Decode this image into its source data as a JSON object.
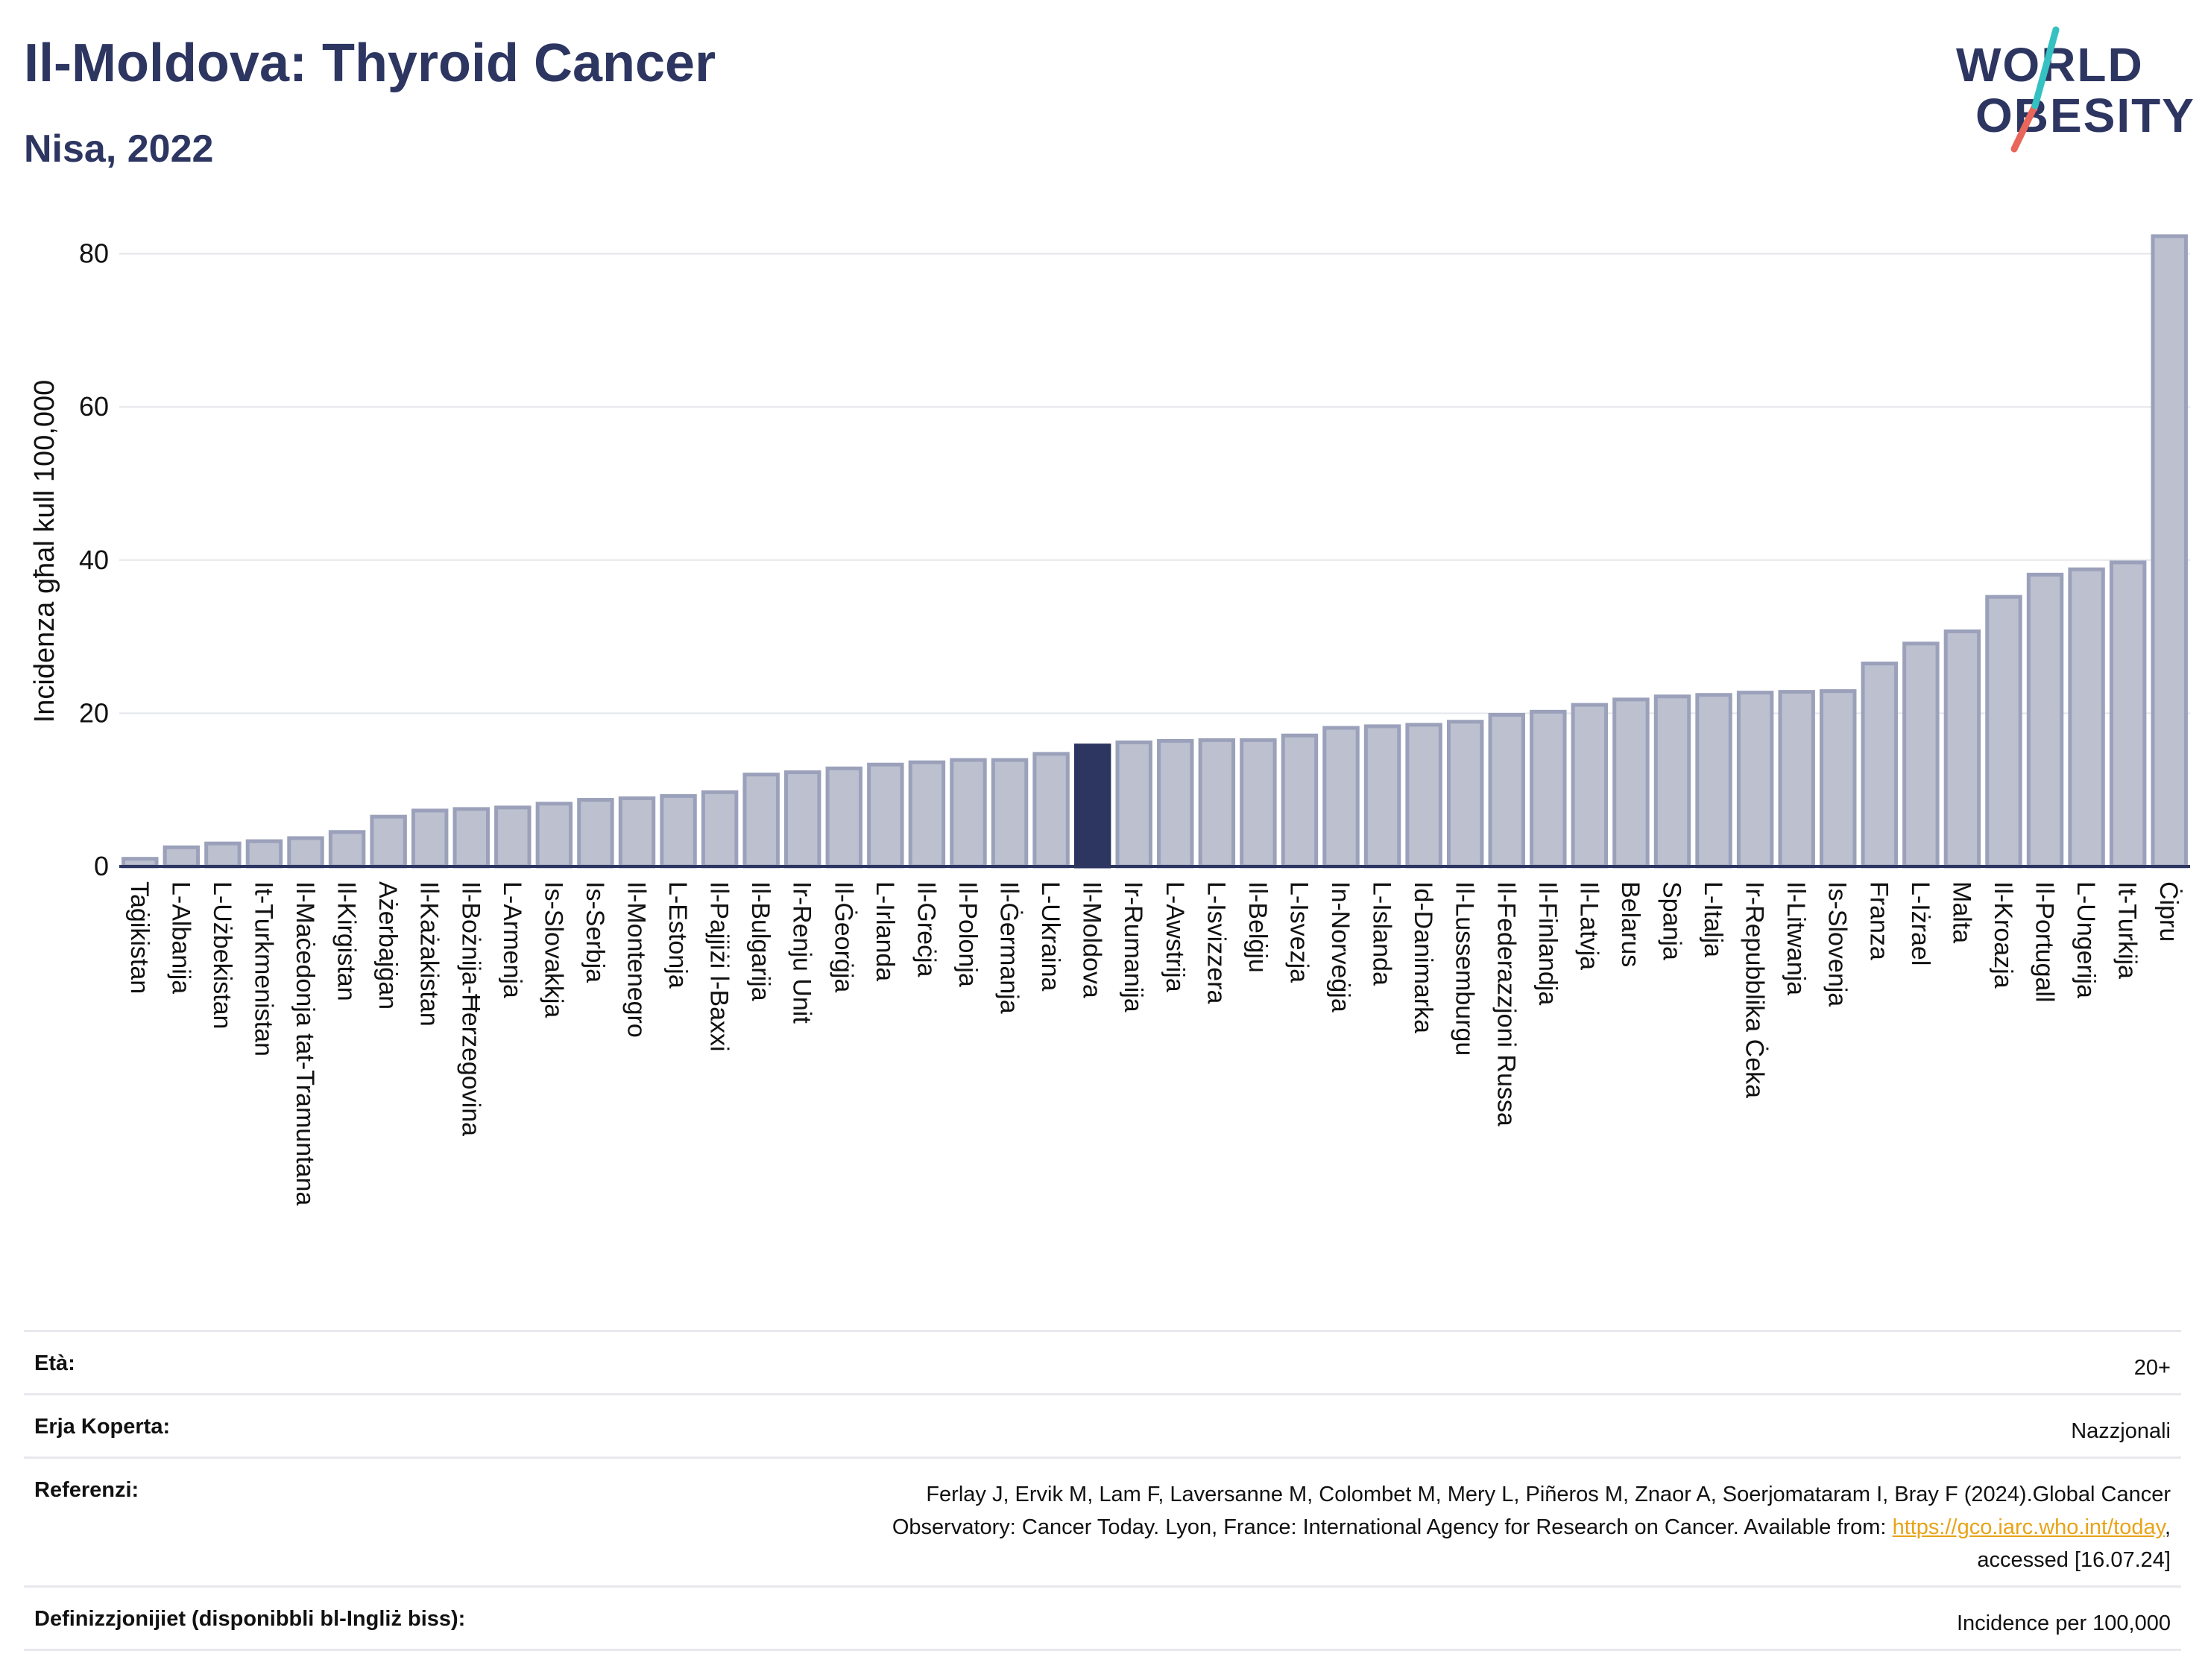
{
  "header": {
    "title": "Il-Moldova: Thyroid Cancer",
    "subtitle": "Nisa, 2022"
  },
  "logo": {
    "line1": "WORLD",
    "line2": "OBESITY",
    "accent_colors": [
      "#35c1c1",
      "#e8665a"
    ]
  },
  "colors": {
    "bar": "#bcc0cf",
    "bar_stroke": "#9ba1ba",
    "highlight": "#2d3561",
    "grid": "#e5e6ec",
    "axis": "#2d3561"
  },
  "chart_data": {
    "type": "bar",
    "ylabel": "Incidenza għal kull 100,000",
    "ylim": [
      0,
      85
    ],
    "yticks": [
      0,
      20,
      40,
      60,
      80
    ],
    "grid": true,
    "highlight": "Il-Moldova",
    "categories": [
      "Taġikistan",
      "L-Albanija",
      "L-Użbekistan",
      "It-Turkmenistan",
      "Il-Maċedonja tat-Tramuntana",
      "Il-Kirgistan",
      "Ażerbajġan",
      "Il-Każakistan",
      "Il-Bożnija-Ħerzegovina",
      "L-Armenja",
      "Is-Slovakkja",
      "Is-Serbja",
      "Il-Montenegro",
      "L-Estonja",
      "Il-Pajjiżi l-Baxxi",
      "Il-Bulgarija",
      "Ir-Renju Unit",
      "Il-Ġeorġja",
      "L-Irlanda",
      "Il-Greċja",
      "Il-Polonja",
      "Il-Ġermanja",
      "L-Ukraina",
      "Il-Moldova",
      "Ir-Rumanija",
      "L-Awstrija",
      "L-Isvizzera",
      "Il-Belġju",
      "L-Isvezja",
      "In-Norveġja",
      "L-Islanda",
      "Id-Danimarka",
      "Il-Lussemburgu",
      "Il-Federazzjoni Russa",
      "Il-Finlandja",
      "Il-Latvja",
      "Belarus",
      "Spanja",
      "L-Italja",
      "Ir-Repubblika Ċeka",
      "Il-Litwanja",
      "Is-Slovenja",
      "Franza",
      "L-Iżrael",
      "Malta",
      "Il-Kroazja",
      "Il-Portugall",
      "L-Ungerija",
      "It-Turkija",
      "Ċipru"
    ],
    "values": [
      1.0,
      2.5,
      3.0,
      3.3,
      3.7,
      4.5,
      6.5,
      7.3,
      7.5,
      7.7,
      8.2,
      8.7,
      8.9,
      9.2,
      9.7,
      12.0,
      12.3,
      12.8,
      13.3,
      13.6,
      13.9,
      13.9,
      14.7,
      15.8,
      16.2,
      16.4,
      16.5,
      16.5,
      17.1,
      18.1,
      18.3,
      18.5,
      18.9,
      19.8,
      20.2,
      21.1,
      21.8,
      22.2,
      22.4,
      22.7,
      22.8,
      22.9,
      26.5,
      29.1,
      30.7,
      35.2,
      38.1,
      38.8,
      39.7,
      82.3
    ]
  },
  "footer": {
    "age_label": "Età:",
    "age_value": "20+",
    "coverage_label": "Erja Koperta:",
    "coverage_value": "Nazzjonali",
    "references_label": "Referenzi:",
    "references_line1": "Ferlay J, Ervik M, Lam F, Laversanne M, Colombet M, Mery L, Piñeros M, Znaor A, Soerjomataram I, Bray F (2024).Global Cancer",
    "references_line2_pre": "Observatory: Cancer Today. Lyon, France: International Agency for Research on Cancer. Available from: ",
    "references_link": "https://gco.iarc.who.int/today",
    "references_line2_post": ",",
    "references_line3": "accessed [16.07.24]",
    "definitions_label": "Definizzjonijiet (disponibbli bl-Ingliż biss):",
    "definitions_value": "Incidence per 100,000"
  }
}
